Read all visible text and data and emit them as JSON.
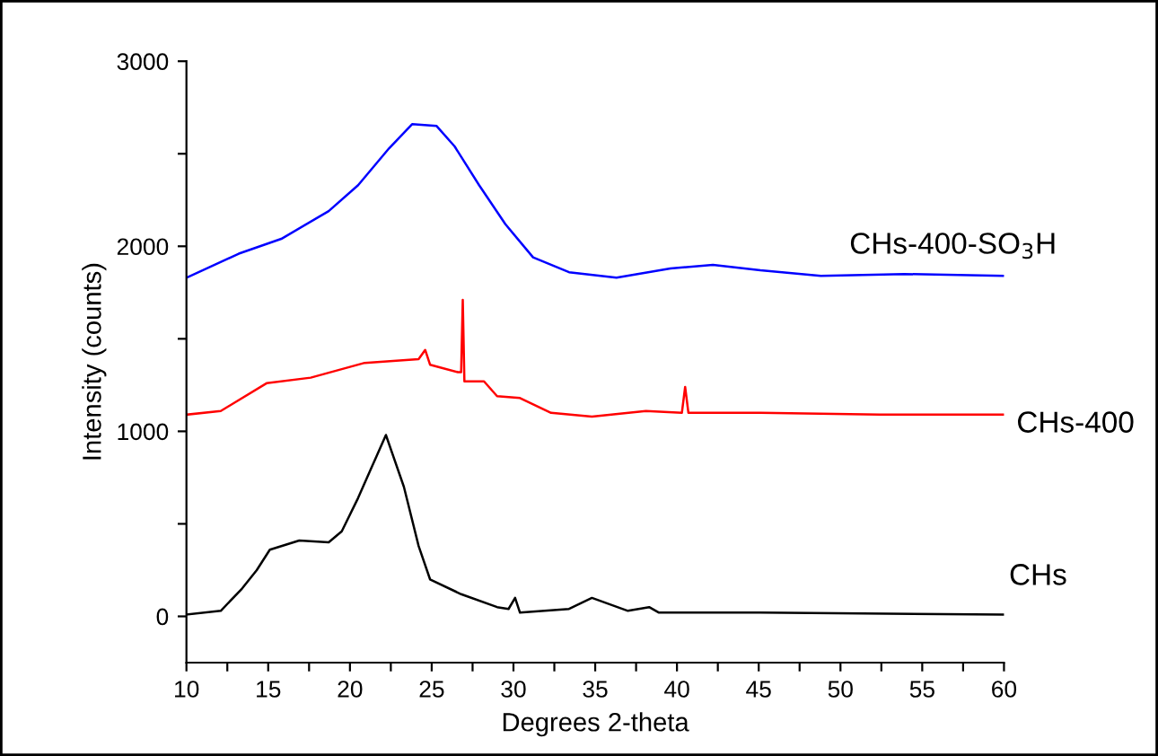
{
  "chart_data": {
    "type": "line",
    "xlabel": "Degrees 2-theta",
    "ylabel": "Intensity (counts)",
    "xlim": [
      10,
      60
    ],
    "ylim": [
      -250,
      3000
    ],
    "xticks": [
      10,
      {
        "value": 12.5,
        "label": null
      },
      15,
      {
        "value": 17.5,
        "label": null
      },
      20,
      {
        "value": 22.5,
        "label": null
      },
      25,
      {
        "value": 27.5,
        "label": null
      },
      30,
      {
        "value": 32.5,
        "label": null
      },
      35,
      {
        "value": 37.5,
        "label": null
      },
      40,
      {
        "value": 42.5,
        "label": null
      },
      45,
      {
        "value": 47.5,
        "label": null
      },
      50,
      {
        "value": 52.5,
        "label": null
      },
      55,
      {
        "value": 57.5,
        "label": null
      },
      60
    ],
    "yticks": [
      0,
      {
        "value": 500,
        "label": null
      },
      1000,
      {
        "value": 1500,
        "label": null
      },
      2000,
      {
        "value": 2500,
        "label": null
      },
      3000
    ],
    "grid": false,
    "legend": false,
    "marker": "none",
    "line_style": "solid",
    "series": [
      {
        "name": "CHs-400-SO$_{3}$H",
        "color": "#0000ff",
        "x": [
          10,
          13.2,
          15.8,
          18.7,
          20.5,
          22.4,
          23.8,
          25.3,
          26.4,
          27.9,
          29.5,
          31.2,
          33.4,
          36.3,
          39.6,
          42.2,
          45.1,
          48.8,
          53.9,
          60
        ],
        "values": [
          1830,
          1960,
          2040,
          2190,
          2330,
          2530,
          2660,
          2650,
          2540,
          2330,
          2120,
          1940,
          1860,
          1830,
          1880,
          1900,
          1870,
          1840,
          1850,
          1840
        ]
      },
      {
        "name": "CHs-400",
        "color": "#ff0000",
        "x": [
          10,
          12.1,
          14.9,
          17.6,
          20.9,
          24.2,
          24.6,
          24.9,
          26.6,
          26.8,
          26.9,
          27.0,
          28.2,
          29.0,
          30.4,
          32.3,
          34.8,
          38.1,
          40.3,
          40.5,
          40.7,
          45.1,
          52.4,
          60
        ],
        "values": [
          1090,
          1110,
          1260,
          1290,
          1370,
          1390,
          1440,
          1360,
          1320,
          1320,
          1710,
          1270,
          1270,
          1190,
          1180,
          1100,
          1080,
          1110,
          1100,
          1240,
          1100,
          1100,
          1090,
          1090
        ]
      },
      {
        "name": "CHs",
        "color": "#000000",
        "x": [
          10,
          12.1,
          13.4,
          14.3,
          15.1,
          16.9,
          18.7,
          19.5,
          20.5,
          21.3,
          22.2,
          23.3,
          24.2,
          24.9,
          26.8,
          29.0,
          29.7,
          30.1,
          30.4,
          33.4,
          34.8,
          37.0,
          38.3,
          38.9,
          45.1,
          60
        ],
        "values": [
          10,
          30,
          150,
          250,
          360,
          410,
          400,
          460,
          640,
          800,
          980,
          700,
          380,
          200,
          120,
          50,
          40,
          100,
          20,
          40,
          100,
          30,
          50,
          20,
          20,
          10
        ]
      }
    ]
  }
}
